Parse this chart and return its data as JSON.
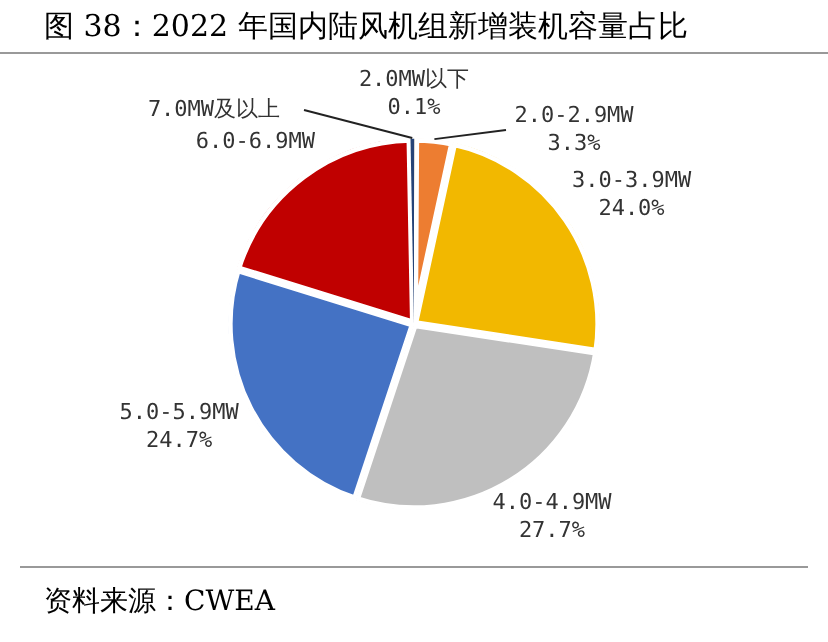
{
  "chart_data": {
    "type": "pie",
    "title": "图 38：2022 年国内陆风机组新增装机容量占比",
    "categories": [
      "2.0MW以下",
      "2.0-2.9MW",
      "3.0-3.9MW",
      "4.0-4.9MW",
      "5.0-5.9MW",
      "6.0-6.9MW",
      "7.0MW及以上"
    ],
    "values": [
      0.1,
      3.3,
      24.0,
      27.7,
      24.7,
      19.9,
      0.3
    ],
    "value_labels": [
      "0.1%",
      "3.3%",
      "24.0%",
      "27.7%",
      "24.7%",
      null,
      null
    ],
    "colors": [
      "#a5a5a5",
      "#ed7d31",
      "#f2b800",
      "#bfbfbf",
      "#4472c4",
      "#c00000",
      "#264478"
    ],
    "legend": false,
    "annotations": [
      "资料来源：CWEA"
    ]
  }
}
